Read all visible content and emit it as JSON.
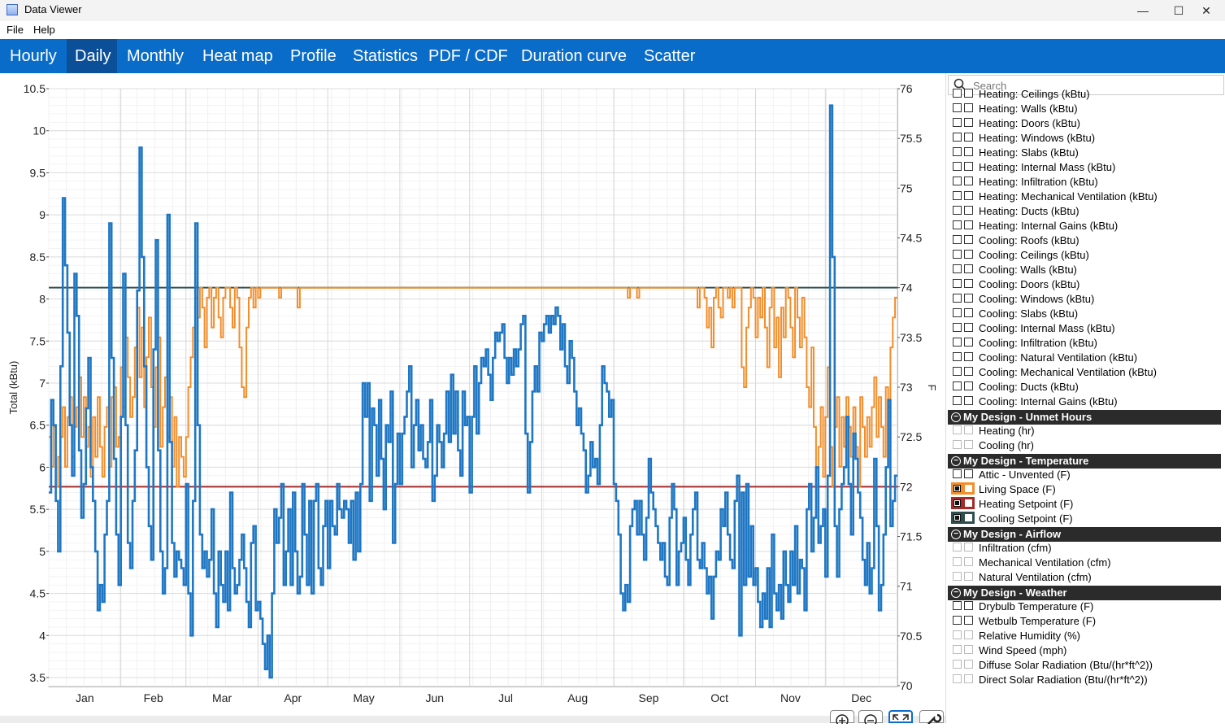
{
  "window": {
    "title": "Data Viewer",
    "minimize": "—",
    "maximize": "☐",
    "close": "✕"
  },
  "menu": {
    "file": "File",
    "help": "Help"
  },
  "tabs": [
    {
      "label": "Hourly"
    },
    {
      "label": "Daily",
      "active": true
    },
    {
      "label": "Monthly"
    },
    {
      "label": "Heat map"
    },
    {
      "label": "Profile"
    },
    {
      "label": "Statistics"
    },
    {
      "label": "PDF / CDF"
    },
    {
      "label": "Duration curve"
    },
    {
      "label": "Scatter"
    }
  ],
  "search": {
    "placeholder": "Search"
  },
  "variables": {
    "top_items": [
      "Heating: Ceilings (kBtu)",
      "Heating: Walls (kBtu)",
      "Heating: Doors (kBtu)",
      "Heating: Windows (kBtu)",
      "Heating: Slabs (kBtu)",
      "Heating: Internal Mass (kBtu)",
      "Heating: Infiltration (kBtu)",
      "Heating: Mechanical Ventilation (kBtu)",
      "Heating: Ducts (kBtu)",
      "Heating: Internal Gains (kBtu)",
      "Cooling: Roofs (kBtu)",
      "Cooling: Ceilings (kBtu)",
      "Cooling: Walls (kBtu)",
      "Cooling: Doors (kBtu)",
      "Cooling: Windows (kBtu)",
      "Cooling: Slabs (kBtu)",
      "Cooling: Internal Mass (kBtu)",
      "Cooling: Infiltration (kBtu)",
      "Cooling: Natural Ventilation (kBtu)",
      "Cooling: Mechanical Ventilation (kBtu)",
      "Cooling: Ducts (kBtu)",
      "Cooling: Internal Gains (kBtu)"
    ],
    "groups": [
      {
        "name": "My Design - Unmet Hours",
        "items": [
          {
            "label": "Heating (hr)"
          },
          {
            "label": "Cooling (hr)"
          }
        ]
      },
      {
        "name": "My Design - Temperature",
        "items": [
          {
            "label": "Attic - Unvented (F)"
          },
          {
            "label": "Living Space (F)",
            "checked": true,
            "color": "#f28e2b"
          },
          {
            "label": "Heating Setpoint (F)",
            "checked": true,
            "color": "#a52a2a"
          },
          {
            "label": "Cooling Setpoint (F)",
            "checked": true,
            "color": "#2f4f4f"
          }
        ]
      },
      {
        "name": "My Design - Airflow",
        "items": [
          {
            "label": "Infiltration (cfm)"
          },
          {
            "label": "Mechanical Ventilation (cfm)"
          },
          {
            "label": "Natural Ventilation (cfm)"
          }
        ]
      },
      {
        "name": "My Design - Weather",
        "items": [
          {
            "label": "Drybulb Temperature (F)"
          },
          {
            "label": "Wetbulb Temperature (F)"
          },
          {
            "label": "Relative Humidity (%)"
          },
          {
            "label": "Wind Speed (mph)"
          },
          {
            "label": "Diffuse Solar Radiation (Btu/(hr*ft^2))"
          },
          {
            "label": "Direct Solar Radiation (Btu/(hr*ft^2))"
          }
        ]
      }
    ]
  },
  "chart_data": {
    "type": "line",
    "ylabel": "Total (kBtu)",
    "y2label": "F",
    "ylim": [
      3.4,
      10.5
    ],
    "y2lim": [
      70,
      76
    ],
    "y_ticks": [
      "10.5",
      "10",
      "9.5",
      "9",
      "8.5",
      "8",
      "7.5",
      "7",
      "6.5",
      "6",
      "5.5",
      "5",
      "4.5",
      "4",
      "3.5"
    ],
    "y2_ticks": [
      "76",
      "75.5",
      "75",
      "74.5",
      "74",
      "73.5",
      "73",
      "72.5",
      "72",
      "71.5",
      "71",
      "70.5",
      "70"
    ],
    "months": [
      "Jan",
      "Feb",
      "Mar",
      "Apr",
      "May",
      "Jun",
      "Jul",
      "Aug",
      "Sep",
      "Oct",
      "Nov",
      "Dec"
    ],
    "grid": true,
    "series": [
      {
        "axis": "left",
        "color": "#1f77c4",
        "monthly_daily_values": [
          [
            5.7,
            6.8,
            6.5,
            5.6,
            5.0,
            7.2,
            9.2,
            8.4,
            7.6,
            6.5,
            5.9,
            8.3,
            7.8,
            6.2,
            5.4,
            5.8,
            6.7,
            7.3,
            6.0,
            5.6,
            5.0,
            4.3,
            4.6,
            4.4,
            5.2,
            5.6,
            8.9,
            7.3,
            6.1,
            5.2,
            4.6
          ],
          [
            6.6,
            8.3,
            6.5,
            5.1,
            4.8,
            5.6,
            6.2,
            8.1,
            9.8,
            8.5,
            7.2,
            6.0,
            5.3,
            4.9,
            7.4,
            8.7,
            6.2,
            5.0,
            4.5,
            4.8,
            9.0,
            6.3,
            5.1,
            4.7,
            5.0,
            4.9,
            4.8,
            4.6
          ],
          [
            5.8,
            4.5,
            4.0,
            5.6,
            8.9,
            6.5,
            5.2,
            4.8,
            5.0,
            4.7,
            4.9,
            5.5,
            4.5,
            4.1,
            5.0,
            4.6,
            4.4,
            5.0,
            4.3,
            5.7,
            4.8,
            4.5,
            4.6,
            4.9,
            5.2,
            4.8,
            4.4,
            4.1,
            5.1,
            5.3,
            4.3
          ],
          [
            4.4,
            4.2,
            3.9,
            3.6,
            4.0,
            3.5,
            4.5,
            5.5,
            5.1,
            5.4,
            5.8,
            4.6,
            5.0,
            5.5,
            4.6,
            5.7,
            5.0,
            4.5,
            4.7,
            5.8,
            5.2,
            4.6,
            5.6,
            4.5,
            5.6,
            5.8,
            4.8,
            4.6,
            5.3,
            5.6
          ],
          [
            4.8,
            5.6,
            5.3,
            5.2,
            5.8,
            5.5,
            5.4,
            5.6,
            5.5,
            5.1,
            5.6,
            4.9,
            5.7,
            5.0,
            5.8,
            7.0,
            6.6,
            7.0,
            5.6,
            6.7,
            6.5,
            5.9,
            6.8,
            6.1,
            5.5,
            6.5,
            6.3,
            6.9,
            5.1,
            5.8,
            6.4
          ],
          [
            5.8,
            6.4,
            6.6,
            6.9,
            7.2,
            6.0,
            6.5,
            6.8,
            6.2,
            6.5,
            6.1,
            6.0,
            6.3,
            6.8,
            5.6,
            5.9,
            6.5,
            6.3,
            6.0,
            6.4,
            6.9,
            6.3,
            7.1,
            6.4,
            6.9,
            6.2,
            5.9,
            6.9,
            6.5,
            6.6
          ],
          [
            5.7,
            6.6,
            7.2,
            6.4,
            7.0,
            7.3,
            7.2,
            7.4,
            7.1,
            6.8,
            7.3,
            7.6,
            7.5,
            7.6,
            7.7,
            7.3,
            7.0,
            7.3,
            7.1,
            7.4,
            7.2,
            7.4,
            7.7,
            7.8,
            6.4,
            5.7,
            6.3,
            6.9,
            7.2,
            6.9,
            7.6
          ],
          [
            7.5,
            7.7,
            7.8,
            7.6,
            7.8,
            7.7,
            7.9,
            7.8,
            7.4,
            7.7,
            7.2,
            7.0,
            7.5,
            7.3,
            6.9,
            6.5,
            6.7,
            6.4,
            6.2,
            5.7,
            5.9,
            6.3,
            6.0,
            6.1,
            5.8,
            6.5,
            7.2,
            7.0,
            6.9,
            6.6,
            6.8
          ],
          [
            5.8,
            5.6,
            5.2,
            4.5,
            4.3,
            4.6,
            4.4,
            5.3,
            5.5,
            5.6,
            5.2,
            5.6,
            5.2,
            4.9,
            5.4,
            6.1,
            5.7,
            5.5,
            5.3,
            5.1,
            4.9,
            5.1,
            4.7,
            4.6,
            5.4,
            5.8,
            5.5,
            4.6,
            5.0,
            5.1
          ],
          [
            5.4,
            4.9,
            4.6,
            5.2,
            5.5,
            5.7,
            4.9,
            4.8,
            5.1,
            4.8,
            4.5,
            4.7,
            4.2,
            4.7,
            5.0,
            4.9,
            5.5,
            5.3,
            5.7,
            5.2,
            4.9,
            4.8,
            5.6,
            5.9,
            4.0,
            5.7,
            4.6,
            5.8,
            4.7,
            5.3,
            4.6
          ],
          [
            4.8,
            4.4,
            4.1,
            4.5,
            4.2,
            4.8,
            4.1,
            5.2,
            4.5,
            4.3,
            4.6,
            4.2,
            5.0,
            4.6,
            4.4,
            5.0,
            4.6,
            5.3,
            4.5,
            4.9,
            4.8,
            4.3,
            5.5,
            5.8,
            5.0,
            5.4,
            6.0,
            5.1,
            5.3,
            5.5
          ],
          [
            4.7,
            5.9,
            10.3,
            8.5,
            5.3,
            4.7,
            5.5,
            5.8,
            6.0,
            6.6,
            5.8,
            5.2,
            6.4,
            6.1,
            5.7,
            5.4,
            4.9,
            4.6,
            5.1,
            4.5,
            4.8,
            6.1,
            5.3,
            4.3,
            4.6,
            5.2,
            6.0,
            6.8,
            5.3,
            5.6,
            5.9
          ]
        ]
      },
      {
        "name": "Living Space (F)",
        "axis": "right",
        "color": "#f28e2b",
        "monthly_daily_values": [
          [
            72.5,
            72.2,
            72.6,
            72.0,
            72.3,
            72.5,
            72.8,
            72.2,
            72.7,
            72.9,
            72.3,
            72.6,
            72.8,
            73.1,
            72.5,
            72.9,
            72.4,
            72.6,
            72.1,
            72.7,
            72.3,
            72.9,
            72.4,
            72.1,
            72.6,
            72.8,
            72.2,
            72.9,
            73.0,
            72.4,
            72.5
          ],
          [
            73.2,
            72.8,
            73.5,
            73.1,
            72.7,
            72.9,
            73.4,
            73.8,
            73.1,
            73.6,
            72.8,
            73.3,
            73.7,
            73.0,
            72.6,
            73.2,
            73.5,
            72.4,
            72.8,
            73.1,
            72.5,
            72.9,
            72.2,
            72.7,
            72.0,
            72.5,
            72.3,
            72.1
          ],
          [
            72.5,
            73.0,
            73.3,
            73.6,
            73.9,
            73.7,
            74.0,
            73.8,
            73.4,
            73.9,
            74.0,
            73.6,
            73.9,
            74.0,
            73.7,
            73.5,
            73.9,
            74.0,
            74.0,
            73.8,
            73.6,
            74.0,
            73.9,
            73.4,
            73.0,
            72.9,
            73.6,
            73.9,
            74.0,
            73.8,
            74.0
          ],
          [
            73.9,
            74.0,
            74.0,
            74.0,
            74.0,
            74.0,
            74.0,
            74.0,
            74.0,
            73.9,
            74.0,
            74.0,
            74.0,
            74.0,
            74.0,
            74.0,
            74.0,
            73.8,
            74.0,
            74.0,
            74.0,
            74.0,
            74.0,
            74.0,
            74.0,
            74.0,
            74.0,
            74.0,
            74.0,
            74.0
          ],
          [
            74.0,
            74.0,
            74.0,
            74.0,
            74.0,
            74.0,
            74.0,
            74.0,
            74.0,
            74.0,
            74.0,
            74.0,
            74.0,
            74.0,
            74.0,
            74.0,
            74.0,
            74.0,
            74.0,
            74.0,
            74.0,
            74.0,
            74.0,
            74.0,
            74.0,
            74.0,
            74.0,
            74.0,
            74.0,
            74.0,
            74.0
          ],
          [
            74.0,
            74.0,
            74.0,
            74.0,
            74.0,
            74.0,
            74.0,
            74.0,
            74.0,
            74.0,
            74.0,
            74.0,
            74.0,
            74.0,
            74.0,
            74.0,
            74.0,
            74.0,
            74.0,
            74.0,
            74.0,
            74.0,
            74.0,
            74.0,
            74.0,
            74.0,
            74.0,
            74.0,
            74.0,
            74.0
          ],
          [
            74.0,
            74.0,
            74.0,
            74.0,
            74.0,
            74.0,
            74.0,
            74.0,
            74.0,
            74.0,
            74.0,
            74.0,
            74.0,
            74.0,
            74.0,
            74.0,
            74.0,
            74.0,
            74.0,
            74.0,
            74.0,
            74.0,
            74.0,
            74.0,
            74.0,
            74.0,
            74.0,
            74.0,
            74.0,
            74.0,
            74.0
          ],
          [
            74.0,
            74.0,
            74.0,
            74.0,
            74.0,
            74.0,
            74.0,
            74.0,
            74.0,
            74.0,
            74.0,
            74.0,
            74.0,
            74.0,
            74.0,
            74.0,
            74.0,
            74.0,
            74.0,
            74.0,
            74.0,
            74.0,
            74.0,
            74.0,
            74.0,
            74.0,
            74.0,
            74.0,
            74.0,
            74.0,
            74.0
          ],
          [
            74.0,
            74.0,
            74.0,
            74.0,
            74.0,
            74.0,
            73.9,
            74.0,
            74.0,
            74.0,
            73.9,
            74.0,
            74.0,
            74.0,
            74.0,
            74.0,
            74.0,
            74.0,
            74.0,
            74.0,
            74.0,
            74.0,
            74.0,
            74.0,
            74.0,
            74.0,
            74.0,
            74.0,
            74.0,
            74.0
          ],
          [
            74.0,
            74.0,
            74.0,
            74.0,
            74.0,
            74.0,
            73.8,
            74.0,
            74.0,
            73.9,
            73.6,
            73.8,
            73.4,
            73.9,
            74.0,
            73.8,
            73.7,
            74.0,
            74.0,
            73.9,
            74.0,
            73.8,
            74.0,
            74.0,
            74.0,
            73.2,
            73.0,
            73.6,
            73.8,
            74.0,
            73.9
          ],
          [
            73.5,
            73.9,
            73.7,
            74.0,
            73.6,
            73.2,
            73.8,
            74.0,
            73.4,
            73.7,
            73.1,
            73.8,
            73.5,
            74.0,
            73.9,
            73.6,
            73.3,
            74.0,
            73.7,
            73.4,
            73.9,
            73.5,
            73.0,
            72.8,
            73.4,
            72.6,
            72.0,
            72.4,
            72.8,
            72.1
          ],
          [
            72.7,
            73.2,
            72.4,
            72.0,
            72.6,
            72.9,
            72.2,
            72.7,
            72.4,
            72.9,
            72.6,
            72.3,
            72.8,
            72.4,
            72.0,
            72.9,
            72.6,
            72.3,
            72.7,
            72.4,
            72.8,
            73.1,
            72.5,
            72.9,
            72.6,
            72.3,
            73.0,
            72.8,
            73.4,
            73.7,
            73.9
          ]
        ]
      },
      {
        "name": "Heating Setpoint (F)",
        "axis": "right",
        "color": "#a52a2a",
        "value": 72
      },
      {
        "name": "Cooling Setpoint (F)",
        "axis": "right",
        "color": "#2f4f4f",
        "value": 74
      }
    ]
  }
}
